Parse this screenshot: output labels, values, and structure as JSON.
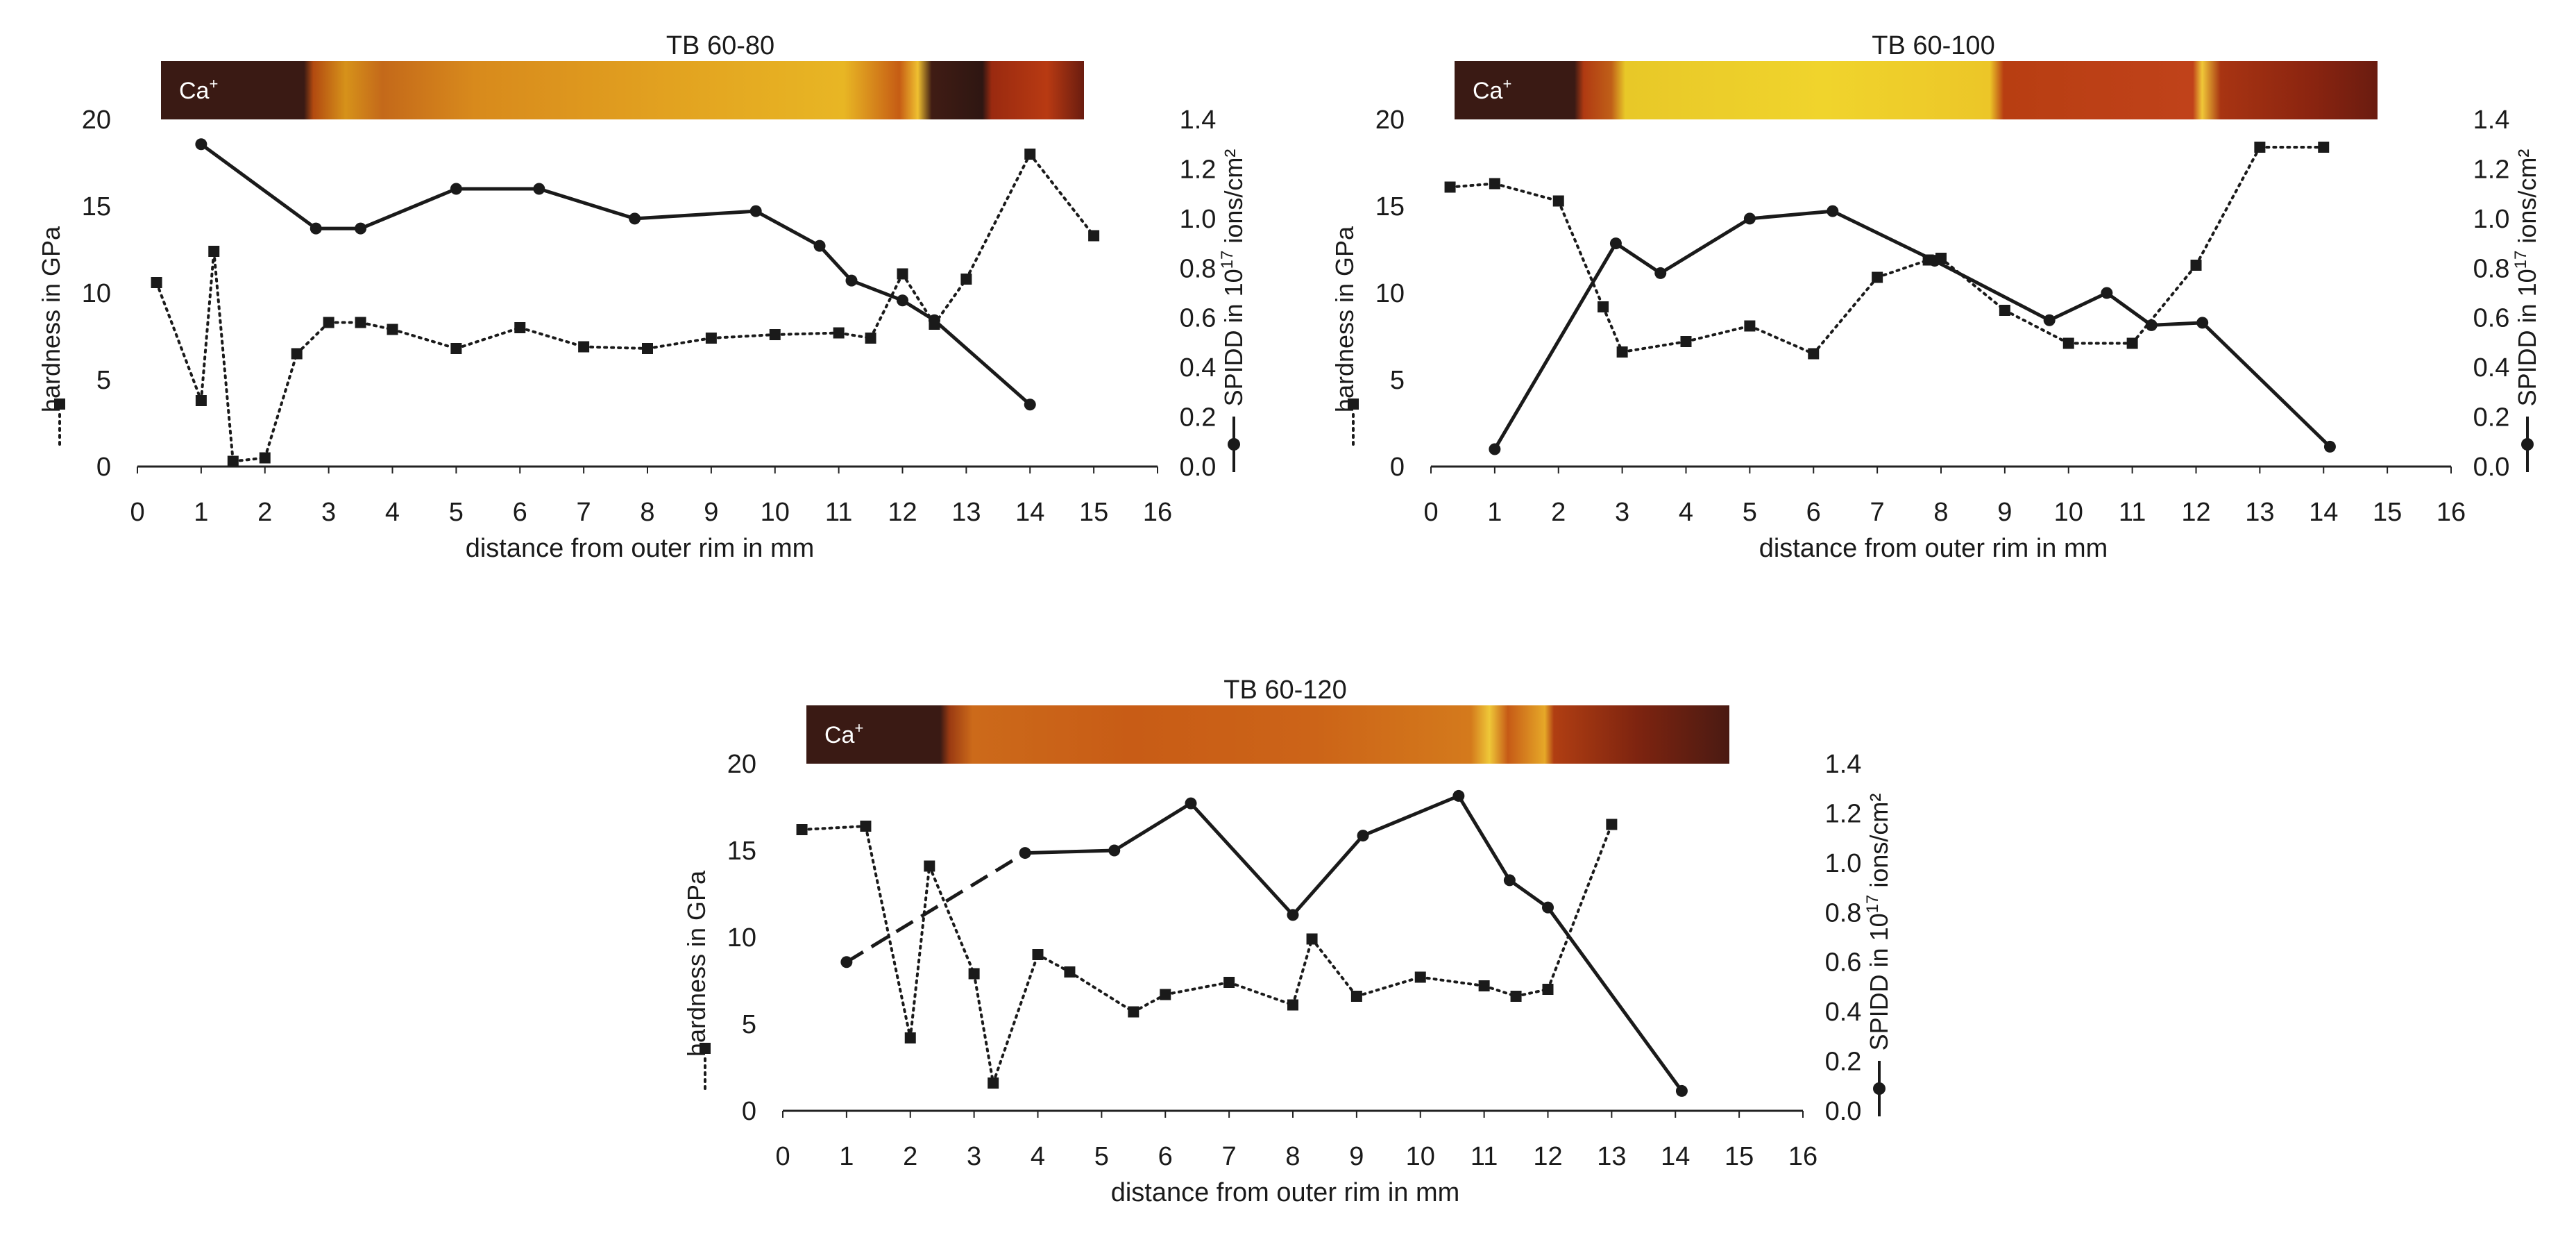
{
  "chart_data": [
    {
      "type": "line",
      "title": "TB 60-80",
      "strip_label": "Ca",
      "strip_label_sup": "+",
      "strip_stops": [
        {
          "at": 0.0,
          "color": "#3a1a14"
        },
        {
          "at": 0.155,
          "color": "#3a1a14"
        },
        {
          "at": 0.165,
          "color": "#b24a10"
        },
        {
          "at": 0.2,
          "color": "#d6921a"
        },
        {
          "at": 0.24,
          "color": "#c4691a"
        },
        {
          "at": 0.34,
          "color": "#d88a1c"
        },
        {
          "at": 0.55,
          "color": "#e2a220"
        },
        {
          "at": 0.74,
          "color": "#e8b624"
        },
        {
          "at": 0.8,
          "color": "#c65c14"
        },
        {
          "at": 0.82,
          "color": "#efc030"
        },
        {
          "at": 0.835,
          "color": "#401c14"
        },
        {
          "at": 0.89,
          "color": "#2e1612"
        },
        {
          "at": 0.9,
          "color": "#9a2a10"
        },
        {
          "at": 0.96,
          "color": "#b83a12"
        },
        {
          "at": 1.0,
          "color": "#6a1c10"
        }
      ],
      "xlabel": "distance from outer rim in mm",
      "ylabel_left": "hardness in GPa",
      "ylabel_right_prefix": "SPIDD in 10",
      "ylabel_right_sup": "17",
      "ylabel_right_suffix": " ions/cm²",
      "xlim": [
        0,
        16
      ],
      "ylim_left": [
        0,
        20
      ],
      "ylim_right": [
        0,
        1.4
      ],
      "xticks": [
        "0",
        "1",
        "2",
        "3",
        "4",
        "5",
        "6",
        "7",
        "8",
        "9",
        "10",
        "11",
        "12",
        "13",
        "14",
        "15",
        "16"
      ],
      "yticks_left": [
        "0",
        "5",
        "10",
        "15",
        "20"
      ],
      "yticks_right": [
        "0.0",
        "0.2",
        "0.4",
        "0.6",
        "0.8",
        "1.0",
        "1.2",
        "1.4"
      ],
      "series": [
        {
          "name": "hardness",
          "axis": "left",
          "style": "dotted",
          "marker": "square",
          "x": [
            0.3,
            1.0,
            1.2,
            1.5,
            2.0,
            2.5,
            3.0,
            3.5,
            4.0,
            5.0,
            6.0,
            7.0,
            8.0,
            9.0,
            10.0,
            11.0,
            11.5,
            12.0,
            12.5,
            13.0,
            14.0,
            15.0
          ],
          "y": [
            10.6,
            3.8,
            12.4,
            0.3,
            0.5,
            6.5,
            8.3,
            8.3,
            7.9,
            6.8,
            8.0,
            6.9,
            6.8,
            7.4,
            7.6,
            7.7,
            7.4,
            11.1,
            8.2,
            10.8,
            18.0,
            13.3
          ]
        },
        {
          "name": "SPIDD",
          "axis": "right",
          "style": "solid",
          "marker": "circle",
          "x": [
            1.0,
            2.8,
            3.5,
            5.0,
            6.3,
            7.8,
            9.7,
            10.7,
            11.2,
            12.0,
            12.5,
            14.0
          ],
          "y": [
            1.3,
            0.96,
            0.96,
            1.12,
            1.12,
            1.0,
            1.03,
            0.89,
            0.75,
            0.67,
            0.59,
            0.25
          ]
        }
      ]
    },
    {
      "type": "line",
      "title": "TB 60-100",
      "strip_label": "Ca",
      "strip_label_sup": "+",
      "strip_stops": [
        {
          "at": 0.0,
          "color": "#3a1a14"
        },
        {
          "at": 0.13,
          "color": "#3a1a14"
        },
        {
          "at": 0.14,
          "color": "#b03a12"
        },
        {
          "at": 0.17,
          "color": "#c06018"
        },
        {
          "at": 0.185,
          "color": "#e8c828"
        },
        {
          "at": 0.4,
          "color": "#f0d42c"
        },
        {
          "at": 0.58,
          "color": "#ecc628"
        },
        {
          "at": 0.595,
          "color": "#b83e12"
        },
        {
          "at": 0.8,
          "color": "#c0421a"
        },
        {
          "at": 0.81,
          "color": "#f0c838"
        },
        {
          "at": 0.83,
          "color": "#a83412"
        },
        {
          "at": 0.93,
          "color": "#8a2410"
        },
        {
          "at": 1.0,
          "color": "#6a1c10"
        }
      ],
      "xlabel": "distance from outer rim in mm",
      "ylabel_left": "hardness in GPa",
      "ylabel_right_prefix": "SPIDD in 10",
      "ylabel_right_sup": "17",
      "ylabel_right_suffix": " ions/cm²",
      "xlim": [
        0,
        16
      ],
      "ylim_left": [
        0,
        20
      ],
      "ylim_right": [
        0,
        1.4
      ],
      "xticks": [
        "0",
        "1",
        "2",
        "3",
        "4",
        "5",
        "6",
        "7",
        "8",
        "9",
        "10",
        "11",
        "12",
        "13",
        "14",
        "15",
        "16"
      ],
      "yticks_left": [
        "0",
        "5",
        "10",
        "15",
        "20"
      ],
      "yticks_right": [
        "0.0",
        "0.2",
        "0.4",
        "0.6",
        "0.8",
        "1.0",
        "1.2",
        "1.4"
      ],
      "series": [
        {
          "name": "hardness",
          "axis": "left",
          "style": "dotted",
          "marker": "square",
          "x": [
            0.3,
            1.0,
            2.0,
            2.7,
            3.0,
            4.0,
            5.0,
            6.0,
            7.0,
            7.8,
            8.0,
            9.0,
            10.0,
            11.0,
            12.0,
            13.0,
            14.0
          ],
          "y": [
            16.1,
            16.3,
            15.3,
            9.2,
            6.6,
            7.2,
            8.1,
            6.5,
            10.9,
            11.9,
            12.0,
            9.0,
            7.1,
            7.1,
            11.6,
            18.4,
            18.4
          ]
        },
        {
          "name": "SPIDD",
          "axis": "right",
          "style": "solid",
          "marker": "circle",
          "x": [
            1.0,
            2.9,
            3.6,
            5.0,
            6.3,
            7.9,
            9.7,
            10.6,
            11.3,
            12.1,
            14.1
          ],
          "y": [
            0.07,
            0.9,
            0.78,
            1.0,
            1.03,
            0.83,
            0.59,
            0.7,
            0.57,
            0.58,
            0.08
          ]
        }
      ]
    },
    {
      "type": "line",
      "title": "TB 60-120",
      "strip_label": "Ca",
      "strip_label_sup": "+",
      "strip_stops": [
        {
          "at": 0.0,
          "color": "#3a1a14"
        },
        {
          "at": 0.145,
          "color": "#3a1a14"
        },
        {
          "at": 0.155,
          "color": "#9a3a12"
        },
        {
          "at": 0.18,
          "color": "#cc6a1a"
        },
        {
          "at": 0.35,
          "color": "#c85c16"
        },
        {
          "at": 0.55,
          "color": "#cc6418"
        },
        {
          "at": 0.72,
          "color": "#d47a1c"
        },
        {
          "at": 0.74,
          "color": "#efc838"
        },
        {
          "at": 0.76,
          "color": "#c65a16"
        },
        {
          "at": 0.8,
          "color": "#e6a828"
        },
        {
          "at": 0.81,
          "color": "#b03e12"
        },
        {
          "at": 0.9,
          "color": "#7e2410"
        },
        {
          "at": 1.0,
          "color": "#4a1a12"
        }
      ],
      "xlabel": "distance from outer rim in mm",
      "ylabel_left": "hardness in GPa",
      "ylabel_right_prefix": "SPIDD in 10",
      "ylabel_right_sup": "17",
      "ylabel_right_suffix": " ions/cm²",
      "xlim": [
        0,
        16
      ],
      "ylim_left": [
        0,
        20
      ],
      "ylim_right": [
        0,
        1.4
      ],
      "xticks": [
        "0",
        "1",
        "2",
        "3",
        "4",
        "5",
        "6",
        "7",
        "8",
        "9",
        "10",
        "11",
        "12",
        "13",
        "14",
        "15",
        "16"
      ],
      "yticks_left": [
        "0",
        "5",
        "10",
        "15",
        "20"
      ],
      "yticks_right": [
        "0.0",
        "0.2",
        "0.4",
        "0.6",
        "0.8",
        "1.0",
        "1.2",
        "1.4"
      ],
      "series": [
        {
          "name": "hardness",
          "axis": "left",
          "style": "dotted",
          "marker": "square",
          "x": [
            0.3,
            1.3,
            2.0,
            2.3,
            3.0,
            3.3,
            4.0,
            4.5,
            5.5,
            6.0,
            7.0,
            8.0,
            8.3,
            9.0,
            10.0,
            11.0,
            11.5,
            12.0,
            13.0
          ],
          "y": [
            16.2,
            16.4,
            4.2,
            14.1,
            7.9,
            1.6,
            9.0,
            8.0,
            5.7,
            6.7,
            7.4,
            6.1,
            9.9,
            6.6,
            7.7,
            7.2,
            6.6,
            7.0,
            16.5
          ]
        },
        {
          "name": "SPIDD",
          "axis": "right",
          "style": "solid",
          "marker": "circle",
          "dashed_until_index": 1,
          "x": [
            1.0,
            3.8,
            5.2,
            6.4,
            8.0,
            9.1,
            10.6,
            11.4,
            12.0,
            14.1
          ],
          "y": [
            0.6,
            1.04,
            1.05,
            1.24,
            0.79,
            1.11,
            1.27,
            0.93,
            0.82,
            0.08
          ]
        }
      ]
    }
  ]
}
